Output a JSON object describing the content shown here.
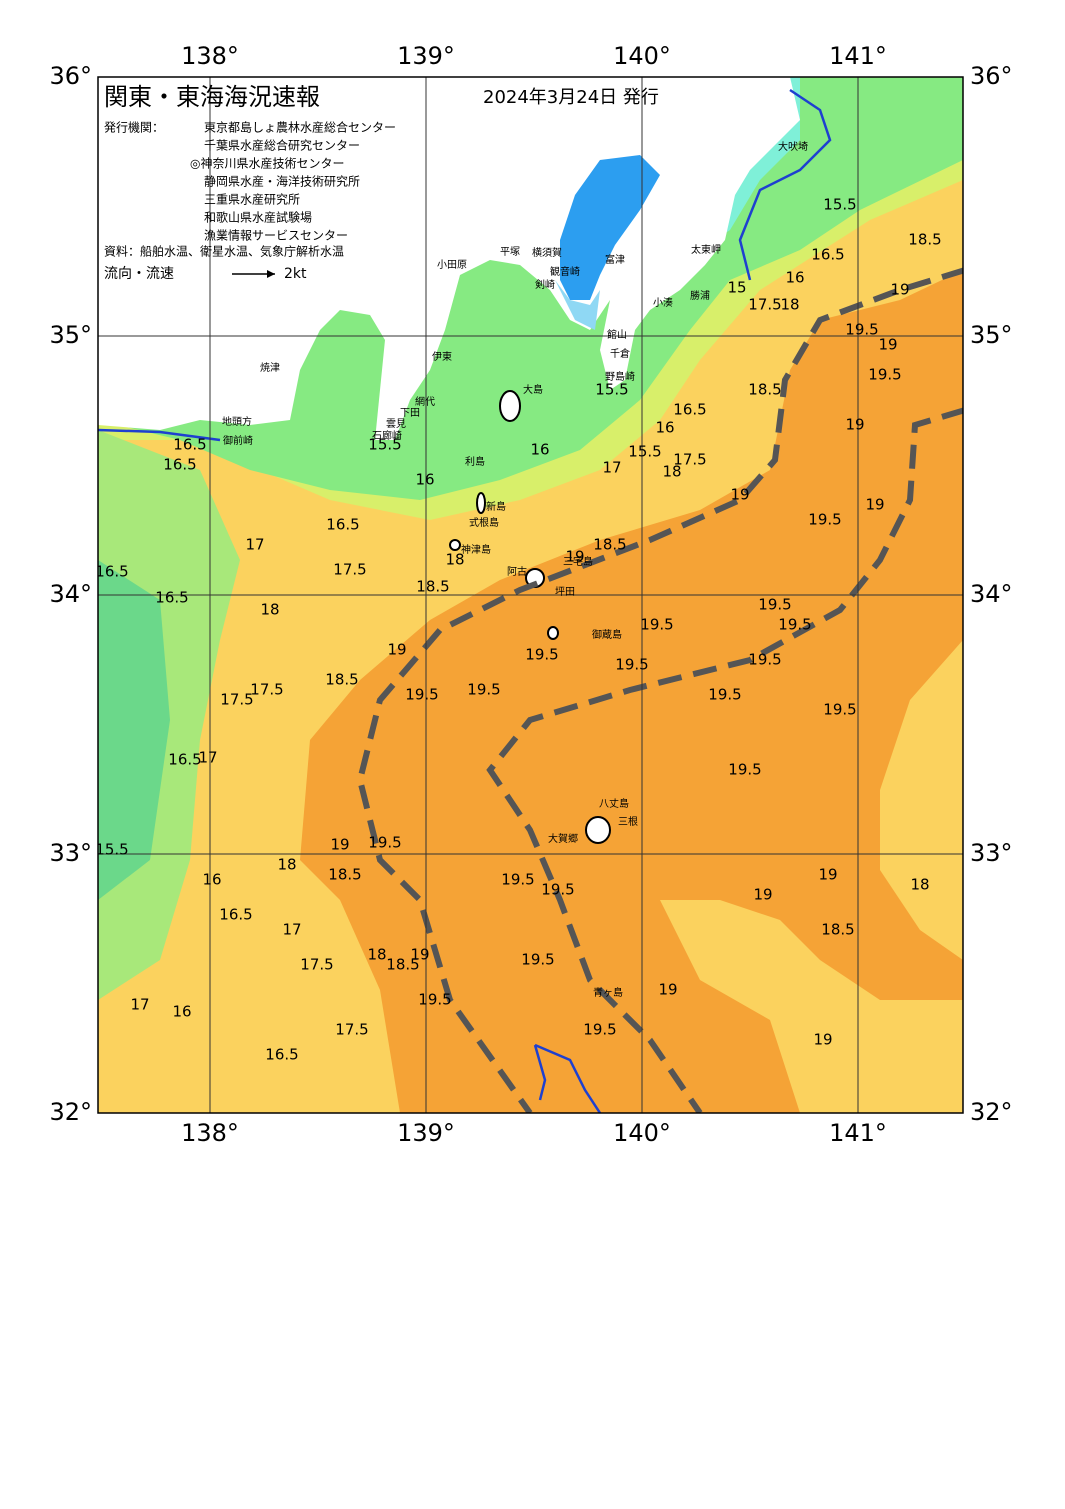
{
  "header": {
    "title": "関東・東海海況速報",
    "date": "2024年3月24日 発行"
  },
  "issuers": {
    "label": "発行機関：",
    "items": [
      "東京都島しょ農林水産総合センター",
      "千葉県水産総合研究センター",
      "◎神奈川県水産技術センター",
      "静岡県水産・海洋技術研究所",
      "三重県水産研究所",
      "和歌山県水産試験場",
      "漁業情報サービスセンター"
    ]
  },
  "source": "資料：船舶水温、衛星水温、気象庁解析水温",
  "legend": {
    "label": "流向・流速",
    "scale": "2kt"
  },
  "axes": {
    "lon_ticks": [
      {
        "value": 138,
        "label": "138°"
      },
      {
        "value": 139,
        "label": "139°"
      },
      {
        "value": 140,
        "label": "140°"
      },
      {
        "value": 141,
        "label": "141°"
      }
    ],
    "lat_ticks": [
      {
        "value": 36,
        "label": "36°"
      },
      {
        "value": 35,
        "label": "35°"
      },
      {
        "value": 34,
        "label": "34°"
      },
      {
        "value": 33,
        "label": "33°"
      },
      {
        "value": 32,
        "label": "32°"
      }
    ]
  },
  "contour_labels": [
    "15.5",
    "18.5",
    "19",
    "16.5",
    "16",
    "15",
    "17.5",
    "18",
    "19.5",
    "19",
    "19.5",
    "18.5",
    "19",
    "19",
    "19.5",
    "16.5",
    "16",
    "15.5",
    "17",
    "18",
    "17.5",
    "19",
    "15.5",
    "16",
    "16",
    "15.5",
    "16.5",
    "16.5",
    "16.5",
    "18.5",
    "19",
    "18",
    "17.5",
    "18.5",
    "17",
    "16.5",
    "16.5",
    "18",
    "19",
    "18.5",
    "19.5",
    "19.5",
    "19.5",
    "19.5",
    "19.5",
    "19.5",
    "19.5",
    "19.5",
    "19.5",
    "19.5",
    "19.5",
    "17.5",
    "17.5",
    "16.5",
    "17",
    "15.5",
    "19",
    "19.5",
    "18",
    "18.5",
    "16",
    "16.5",
    "17",
    "17.5",
    "18",
    "18.5",
    "19",
    "19.5",
    "19.5",
    "19.5",
    "19",
    "19",
    "18",
    "18.5",
    "19.5",
    "19.5",
    "19",
    "19",
    "17",
    "16",
    "17.5",
    "16.5"
  ],
  "places": [
    "大吠埼",
    "太東岬",
    "勝浦",
    "小湊",
    "館山",
    "千倉",
    "野島崎",
    "富津",
    "観音崎",
    "横須賀",
    "平塚",
    "小田原",
    "剣崎",
    "大島",
    "利島",
    "新島",
    "式根島",
    "神津島",
    "三宅島",
    "阿古",
    "坪田",
    "御蔵島",
    "八丈島",
    "三根",
    "大賀郷",
    "青ヶ島",
    "伊東",
    "網代",
    "下田",
    "雲見",
    "石廊崎",
    "焼津",
    "地頭方",
    "御前崎"
  ]
}
